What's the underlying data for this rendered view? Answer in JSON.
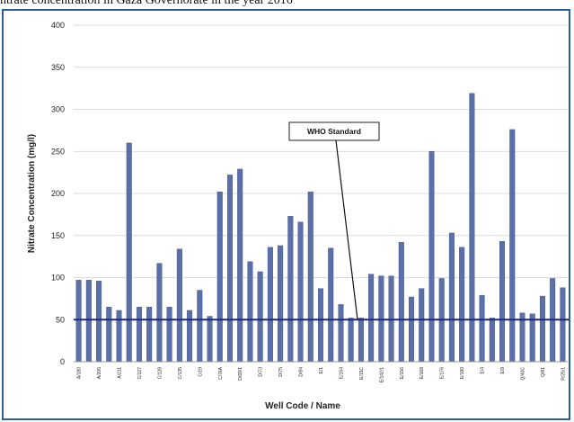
{
  "caption_fragment": "ntrate concentration in Gaza Governorate in the year 2016",
  "chart_data": {
    "type": "bar",
    "xlabel": "Well Code / Name",
    "ylabel": "Nitrate Concentration (mg/l)",
    "ylim": [
      0,
      400
    ],
    "yticks": [
      0,
      50,
      100,
      150,
      200,
      250,
      300,
      350,
      400
    ],
    "grid": true,
    "bar_color": "#5b6fa8",
    "reference_line": {
      "label": "WHO Standard",
      "value": 50,
      "color": "#1f2a7a"
    },
    "categories": [
      "A/180",
      "",
      "A/205",
      "",
      "A/211",
      "",
      "C/127",
      "",
      "C/128",
      "",
      "C/135",
      "",
      "C/19",
      "",
      "C/76A",
      "",
      "D/69/1",
      "",
      "D/73",
      "",
      "D/75",
      "",
      "D/84",
      "",
      "E/1",
      "",
      "E/154",
      "",
      "E/15C",
      "",
      "E/142/1",
      "",
      "E/156",
      "",
      "E/168",
      "",
      "E/176",
      "",
      "E/180",
      "",
      "E/4",
      "",
      "E/9",
      "",
      "Q/40C",
      "",
      "Q/81",
      "",
      "R/25/1"
    ],
    "values": [
      97,
      97,
      96,
      65,
      61,
      260,
      65,
      65,
      117,
      65,
      134,
      61,
      85,
      54,
      202,
      222,
      229,
      119,
      107,
      136,
      138,
      173,
      166,
      202,
      87,
      135,
      68,
      52,
      52,
      104,
      102,
      102,
      142,
      77,
      87,
      250,
      99,
      153,
      136,
      319,
      79,
      52,
      143,
      276,
      58,
      57,
      78,
      99,
      88
    ]
  }
}
